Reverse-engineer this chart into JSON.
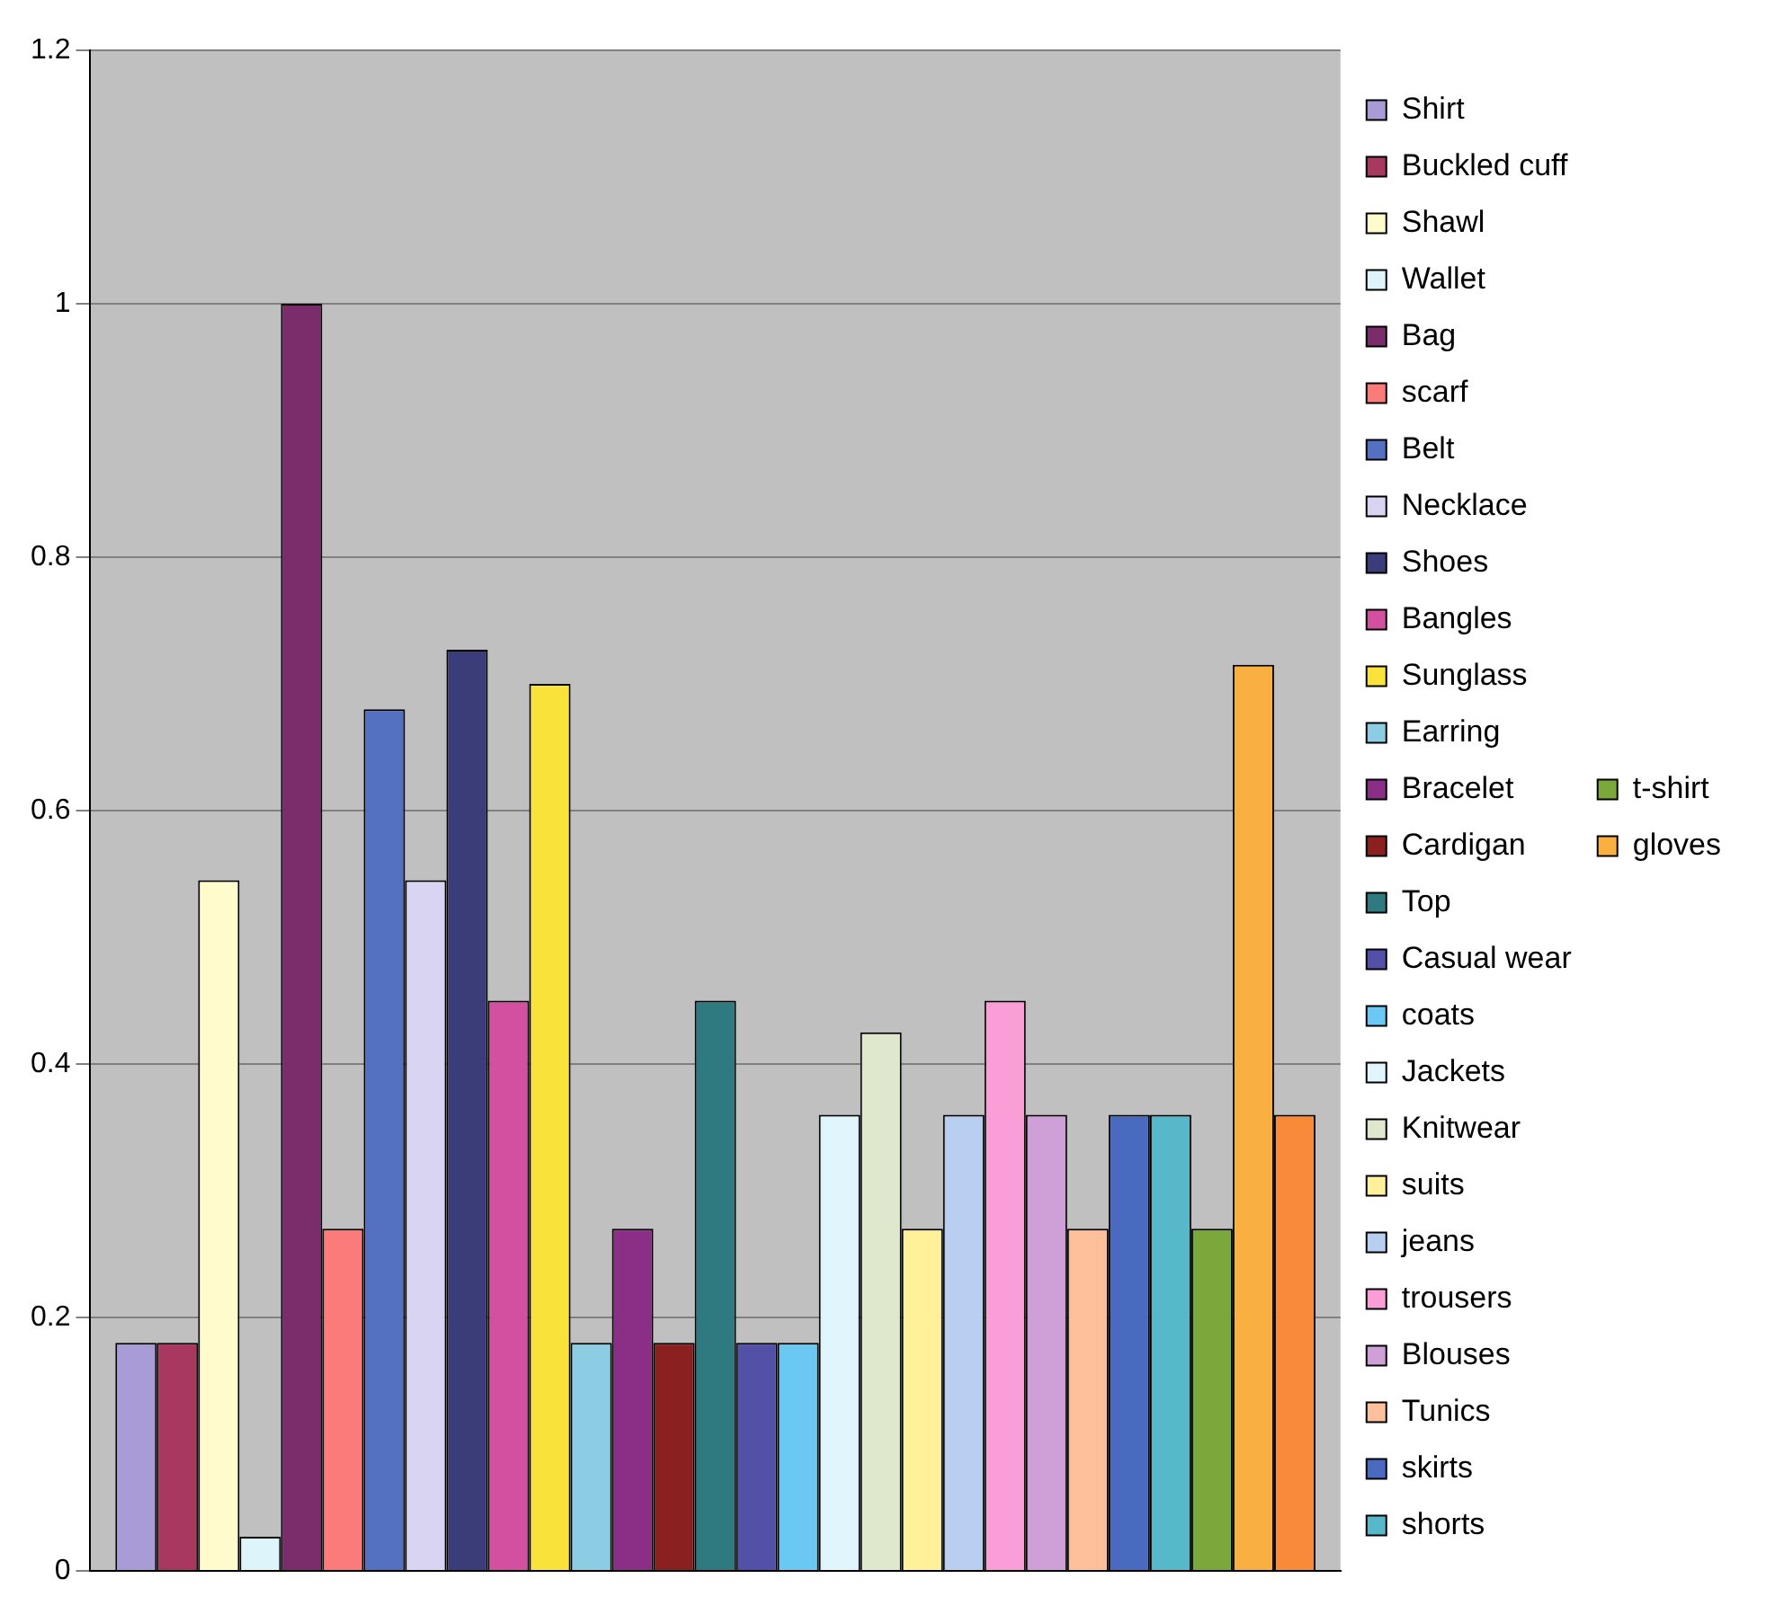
{
  "chart_data": {
    "type": "bar",
    "categories": [
      null
    ],
    "series": [
      {
        "name": "Shirt",
        "color": "#a99bd5",
        "values": [
          0.18
        ]
      },
      {
        "name": "Buckled cuff",
        "color": "#a8385f",
        "values": [
          0.18
        ]
      },
      {
        "name": "Shawl",
        "color": "#fffbcc",
        "values": [
          0.545
        ]
      },
      {
        "name": "Wallet",
        "color": "#ddf4fb",
        "values": [
          0.027
        ]
      },
      {
        "name": "Bag",
        "color": "#7b2d6b",
        "values": [
          1.0
        ]
      },
      {
        "name": "scarf",
        "color": "#fb7b7b",
        "values": [
          0.27
        ]
      },
      {
        "name": "Belt",
        "color": "#5470c0",
        "values": [
          0.68
        ]
      },
      {
        "name": "Necklace",
        "color": "#d9d4f2",
        "values": [
          0.545
        ]
      },
      {
        "name": "Shoes",
        "color": "#3b3c7a",
        "values": [
          0.727
        ]
      },
      {
        "name": "Bangles",
        "color": "#d350a0",
        "values": [
          0.45
        ]
      },
      {
        "name": "Sunglass",
        "color": "#f9e23a",
        "values": [
          0.7
        ]
      },
      {
        "name": "Earring",
        "color": "#8dcde4",
        "values": [
          0.18
        ]
      },
      {
        "name": "Bracelet",
        "color": "#8b2f86",
        "values": [
          0.27
        ]
      },
      {
        "name": "Cardigan",
        "color": "#8a2020",
        "values": [
          0.18
        ]
      },
      {
        "name": "Top",
        "color": "#2f7a80",
        "values": [
          0.45
        ]
      },
      {
        "name": "Casual wear",
        "color": "#5350a8",
        "values": [
          0.18
        ]
      },
      {
        "name": "coats",
        "color": "#6ac8f2",
        "values": [
          0.18
        ]
      },
      {
        "name": "Jackets",
        "color": "#e0f6fc",
        "values": [
          0.36
        ]
      },
      {
        "name": "Knitwear",
        "color": "#dfe8cc",
        "values": [
          0.425
        ]
      },
      {
        "name": "suits",
        "color": "#fff09a",
        "values": [
          0.27
        ]
      },
      {
        "name": "jeans",
        "color": "#b8cff2",
        "values": [
          0.36
        ]
      },
      {
        "name": "trousers",
        "color": "#fa9ed8",
        "values": [
          0.45
        ]
      },
      {
        "name": "Blouses",
        "color": "#cf9fd8",
        "values": [
          0.36
        ]
      },
      {
        "name": "Tunics",
        "color": "#fdc09a",
        "values": [
          0.27
        ]
      },
      {
        "name": "skirts",
        "color": "#4a6ac0",
        "values": [
          0.36
        ]
      },
      {
        "name": "shorts",
        "color": "#56b8c8",
        "values": [
          0.36
        ]
      },
      {
        "name": "t-shirt",
        "color": "#7aa83a",
        "values": [
          0.27
        ]
      },
      {
        "name": "gloves",
        "color": "#f9b040",
        "values": [
          0.715
        ]
      },
      {
        "color": "#f98a3a",
        "values": [
          0.36
        ]
      }
    ],
    "ylim": [
      0,
      1.2
    ],
    "yticks": [
      0,
      0.2,
      0.4,
      0.6,
      0.8,
      1,
      1.2
    ],
    "grid": "y",
    "legend": "right"
  }
}
